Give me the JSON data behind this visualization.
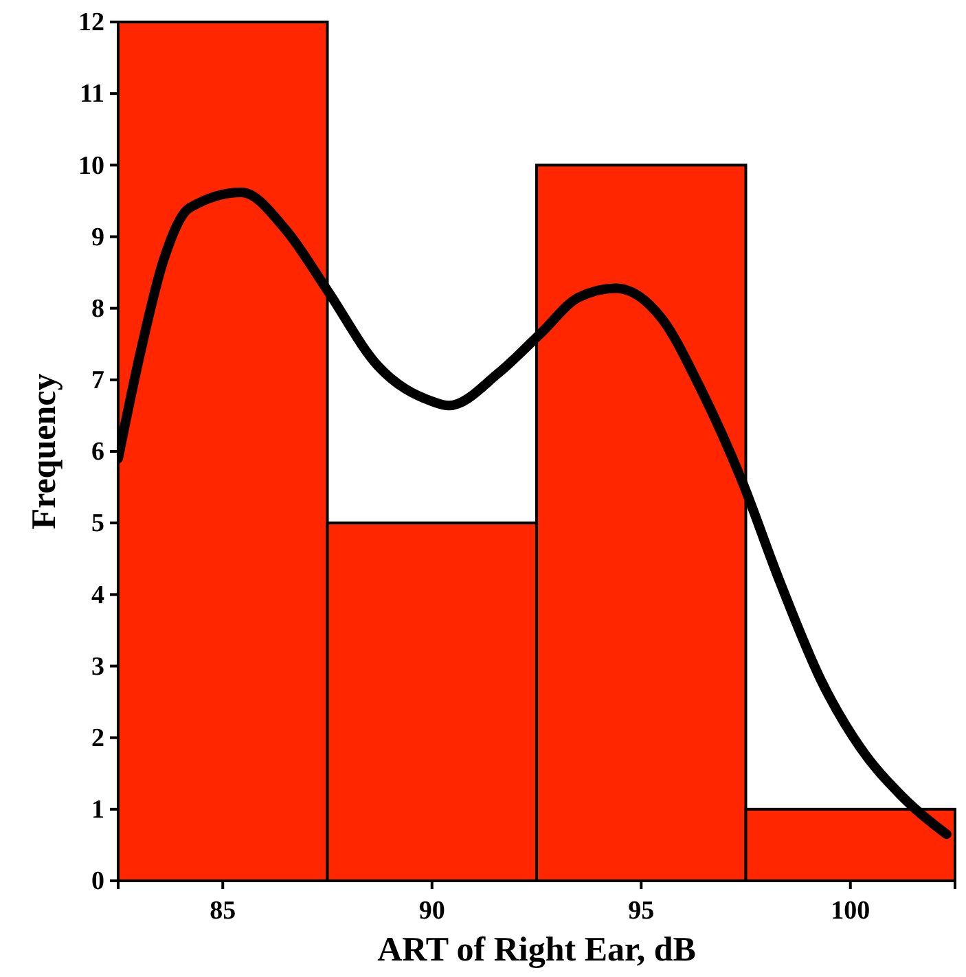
{
  "chart_data": {
    "type": "histogram",
    "xlabel": "ART of Right Ear, dB",
    "ylabel": "Frequency",
    "bins": [
      82.5,
      87.5,
      92.5,
      97.5,
      102.5
    ],
    "values": [
      12,
      5,
      10,
      1
    ],
    "color": "#ff2600",
    "series": [
      {
        "type": "line",
        "color": "#000000",
        "x": [
          82.5,
          83.0,
          83.6,
          84.2,
          85.45,
          86.5,
          87.5,
          88.7,
          90.0,
          90.4,
          91.6,
          92.6,
          93.5,
          94.4,
          95.5,
          96.4,
          97.4,
          98.3,
          99.3,
          100.25,
          101.2,
          102.3
        ],
        "values": [
          5.9,
          7.3,
          8.7,
          9.4,
          9.62,
          9.1,
          8.25,
          7.2,
          6.7,
          6.64,
          7.1,
          7.65,
          8.15,
          8.28,
          7.85,
          6.9,
          5.6,
          4.2,
          2.8,
          1.85,
          1.2,
          0.65
        ]
      }
    ],
    "xlim": [
      82.5,
      102.5
    ],
    "xticks": [
      85,
      90,
      95,
      100
    ],
    "ylim": [
      0,
      12
    ],
    "yticks": [
      0,
      1,
      2,
      3,
      4,
      5,
      6,
      7,
      8,
      9,
      10,
      11,
      12
    ],
    "grid": false
  }
}
